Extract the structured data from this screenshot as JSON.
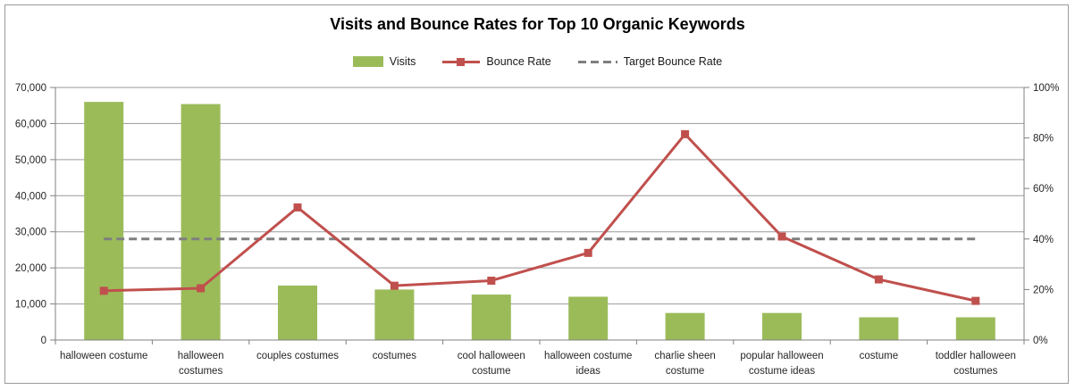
{
  "chart_data": {
    "type": "combo-bar-line",
    "title": "Visits and Bounce Rates for Top 10 Organic Keywords",
    "categories": [
      {
        "label": "halloween costume",
        "lines": [
          "halloween costume"
        ]
      },
      {
        "label": "halloween costumes",
        "lines": [
          "halloween",
          "costumes"
        ]
      },
      {
        "label": "couples costumes",
        "lines": [
          "couples costumes"
        ]
      },
      {
        "label": "costumes",
        "lines": [
          "costumes"
        ]
      },
      {
        "label": "cool halloween costume",
        "lines": [
          "cool halloween",
          "costume"
        ]
      },
      {
        "label": "halloween costume ideas",
        "lines": [
          "halloween costume",
          "ideas"
        ]
      },
      {
        "label": "charlie sheen costume",
        "lines": [
          "charlie sheen",
          "costume"
        ]
      },
      {
        "label": "popular halloween costume ideas",
        "lines": [
          "popular halloween",
          "costume ideas"
        ]
      },
      {
        "label": "costume",
        "lines": [
          "costume"
        ]
      },
      {
        "label": "toddler halloween costumes",
        "lines": [
          "toddler halloween",
          "costumes"
        ]
      }
    ],
    "series": [
      {
        "name": "Visits",
        "type": "bar",
        "axis": "left",
        "color": "#9BBB59",
        "values": [
          66000,
          65400,
          15100,
          14000,
          12600,
          12000,
          7500,
          7500,
          6300,
          6300
        ]
      },
      {
        "name": "Bounce Rate",
        "type": "line",
        "axis": "right",
        "color": "#C0504D",
        "marker": "square",
        "values": [
          19.5,
          20.5,
          52.5,
          21.5,
          23.5,
          34.5,
          81.5,
          41,
          24,
          15.5
        ]
      },
      {
        "name": "Target Bounce Rate",
        "type": "dashed-line",
        "axis": "right",
        "color": "#7F7F7F",
        "value": 40
      }
    ],
    "axes": {
      "left": {
        "min": 0,
        "max": 70000,
        "step": 10000,
        "tick_labels": [
          "0",
          "10,000",
          "20,000",
          "30,000",
          "40,000",
          "50,000",
          "60,000",
          "70,000"
        ]
      },
      "right": {
        "min": 0,
        "max": 100,
        "step": 20,
        "tick_labels": [
          "0%",
          "20%",
          "40%",
          "60%",
          "80%",
          "100%"
        ]
      }
    },
    "legend_position": "top",
    "grid": true
  },
  "colors": {
    "bar": "#9BBB59",
    "line": "#C0504D",
    "target": "#7F7F7F",
    "gridline": "#9A9A9A",
    "axis": "#808080",
    "text": "#262626",
    "frame_border": "#9B9B9B",
    "background": "#FFFFFF"
  }
}
